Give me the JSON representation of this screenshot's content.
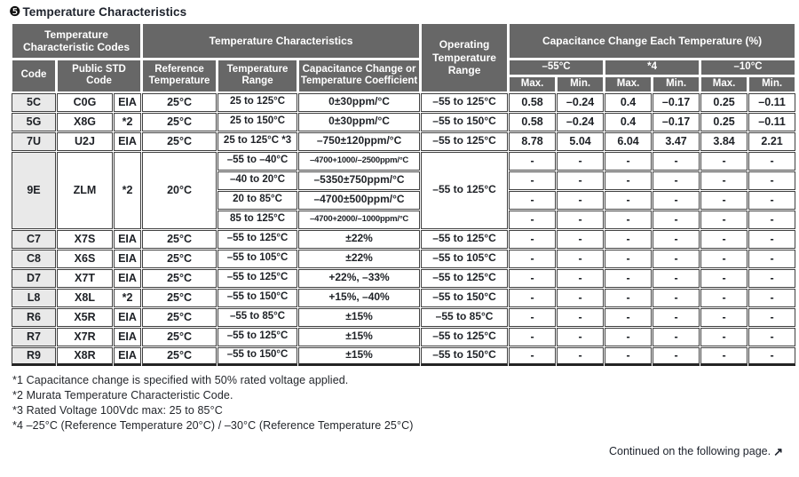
{
  "page": {
    "title_bullet": "❺",
    "title": "Temperature Characteristics",
    "continued_note": "Continued on the following page.",
    "continued_arrow": "↗"
  },
  "colors": {
    "header_bg": "#676767",
    "code_col_bg": "#e9e9e9",
    "border_dark": "#3f3f3f",
    "text": "#23262b"
  },
  "table": {
    "header": {
      "temp_char_codes": "Temperature Characteristic Codes",
      "temp_chars": "Temperature Characteristics",
      "operating_range": "Operating Temperature Range",
      "cap_change_each": "Capacitance Change Each Temperature (%)",
      "code": "Code",
      "public_std_code": "Public STD Code",
      "reference_temperature": "Reference Temperature",
      "temperature_range": "Temperature Range",
      "cap_change_or_coef": "Capacitance Change or Temperature Coefficient",
      "col_minus55": "–55°C",
      "col_star4": "*4",
      "col_minus10": "–10°C",
      "max": "Max.",
      "min": "Min."
    },
    "rows": [
      {
        "code": "5C",
        "std": "C0G",
        "org": "EIA",
        "ref": "25°C",
        "op": "–55 to 125°C",
        "segments": [
          {
            "range": "25 to 125°C",
            "coef": "0±30ppm/°C",
            "vals": [
              "0.58",
              "–0.24",
              "0.4",
              "–0.17",
              "0.25",
              "–0.11"
            ]
          }
        ]
      },
      {
        "code": "5G",
        "std": "X8G",
        "org": "*2",
        "ref": "25°C",
        "op": "–55 to 150°C",
        "segments": [
          {
            "range": "25 to 150°C",
            "coef": "0±30ppm/°C",
            "vals": [
              "0.58",
              "–0.24",
              "0.4",
              "–0.17",
              "0.25",
              "–0.11"
            ]
          }
        ]
      },
      {
        "code": "7U",
        "std": "U2J",
        "org": "EIA",
        "ref": "25°C",
        "op": "–55 to 125°C",
        "segments": [
          {
            "range": "25 to 125°C *3",
            "coef": "–750±120ppm/°C",
            "vals": [
              "8.78",
              "5.04",
              "6.04",
              "3.47",
              "3.84",
              "2.21"
            ]
          }
        ]
      },
      {
        "code": "9E",
        "std": "ZLM",
        "org": "*2",
        "ref": "20°C",
        "op": "–55 to 125°C",
        "segments": [
          {
            "range": "–55 to –40°C",
            "coef": "–4700+1000/–2500ppm/°C",
            "small_coef": true,
            "vals": [
              "-",
              "-",
              "-",
              "-",
              "-",
              "-"
            ]
          },
          {
            "range": "–40 to 20°C",
            "coef": "–5350±750ppm/°C",
            "vals": [
              "-",
              "-",
              "-",
              "-",
              "-",
              "-"
            ]
          },
          {
            "range": "20 to 85°C",
            "coef": "–4700±500ppm/°C",
            "vals": [
              "-",
              "-",
              "-",
              "-",
              "-",
              "-"
            ]
          },
          {
            "range": "85 to 125°C",
            "coef": "–4700+2000/–1000ppm/°C",
            "small_coef": true,
            "vals": [
              "-",
              "-",
              "-",
              "-",
              "-",
              "-"
            ]
          }
        ]
      },
      {
        "code": "C7",
        "std": "X7S",
        "org": "EIA",
        "ref": "25°C",
        "op": "–55 to 125°C",
        "segments": [
          {
            "range": "–55 to 125°C",
            "coef": "±22%",
            "vals": [
              "-",
              "-",
              "-",
              "-",
              "-",
              "-"
            ]
          }
        ]
      },
      {
        "code": "C8",
        "std": "X6S",
        "org": "EIA",
        "ref": "25°C",
        "op": "–55 to 105°C",
        "segments": [
          {
            "range": "–55 to 105°C",
            "coef": "±22%",
            "vals": [
              "-",
              "-",
              "-",
              "-",
              "-",
              "-"
            ]
          }
        ]
      },
      {
        "code": "D7",
        "std": "X7T",
        "org": "EIA",
        "ref": "25°C",
        "op": "–55 to 125°C",
        "segments": [
          {
            "range": "–55 to 125°C",
            "coef": "+22%, –33%",
            "vals": [
              "-",
              "-",
              "-",
              "-",
              "-",
              "-"
            ]
          }
        ]
      },
      {
        "code": "L8",
        "std": "X8L",
        "org": "*2",
        "ref": "25°C",
        "op": "–55 to 150°C",
        "segments": [
          {
            "range": "–55 to 150°C",
            "coef": "+15%, –40%",
            "vals": [
              "-",
              "-",
              "-",
              "-",
              "-",
              "-"
            ]
          }
        ]
      },
      {
        "code": "R6",
        "std": "X5R",
        "org": "EIA",
        "ref": "25°C",
        "op": "–55 to 85°C",
        "segments": [
          {
            "range": "–55 to 85°C",
            "coef": "±15%",
            "vals": [
              "-",
              "-",
              "-",
              "-",
              "-",
              "-"
            ]
          }
        ]
      },
      {
        "code": "R7",
        "std": "X7R",
        "org": "EIA",
        "ref": "25°C",
        "op": "–55 to 125°C",
        "segments": [
          {
            "range": "–55 to 125°C",
            "coef": "±15%",
            "vals": [
              "-",
              "-",
              "-",
              "-",
              "-",
              "-"
            ]
          }
        ]
      },
      {
        "code": "R9",
        "std": "X8R",
        "org": "EIA",
        "ref": "25°C",
        "op": "–55 to 150°C",
        "segments": [
          {
            "range": "–55 to 150°C",
            "coef": "±15%",
            "vals": [
              "-",
              "-",
              "-",
              "-",
              "-",
              "-"
            ]
          }
        ]
      }
    ]
  },
  "footnotes": [
    "*1 Capacitance change is specified with 50% rated voltage applied.",
    "*2 Murata Temperature Characteristic Code.",
    "*3 Rated Voltage 100Vdc max: 25 to 85°C",
    "*4 –25°C (Reference Temperature 20°C) / –30°C (Reference Temperature 25°C)"
  ]
}
